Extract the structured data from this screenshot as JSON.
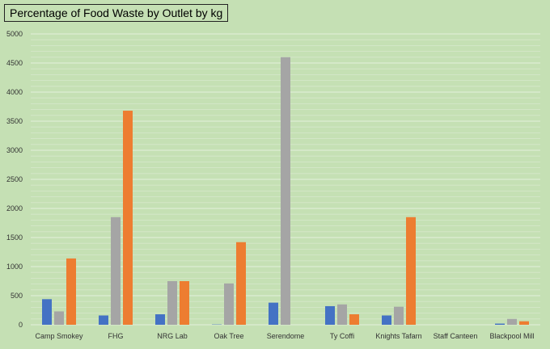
{
  "chart_data": {
    "type": "bar",
    "title": "Percentage of Food Waste by Outlet by kg",
    "categories": [
      "Camp Smokey",
      "FHG",
      "NRG Lab",
      "Oak Tree",
      "Serendome",
      "Ty Coffi",
      "Knights Tafarn",
      "Staff Canteen",
      "Blackpool Mill"
    ],
    "series": [
      {
        "color": "#4472c4",
        "values": [
          440,
          160,
          180,
          5,
          380,
          320,
          160,
          0,
          20
        ]
      },
      {
        "color": "#a5a5a5",
        "values": [
          230,
          1850,
          750,
          710,
          4600,
          350,
          310,
          0,
          100
        ]
      },
      {
        "color": "#ed7d31",
        "values": [
          1140,
          3680,
          750,
          1420,
          0,
          180,
          1850,
          0,
          60
        ]
      }
    ],
    "ylim": [
      0,
      5000
    ],
    "yticks": [
      "0",
      "500",
      "1000",
      "1500",
      "2000",
      "2500",
      "3000",
      "3500",
      "4000",
      "4500",
      "5000"
    ],
    "xlabel": "",
    "ylabel": "",
    "grid": true,
    "legend": "none"
  }
}
